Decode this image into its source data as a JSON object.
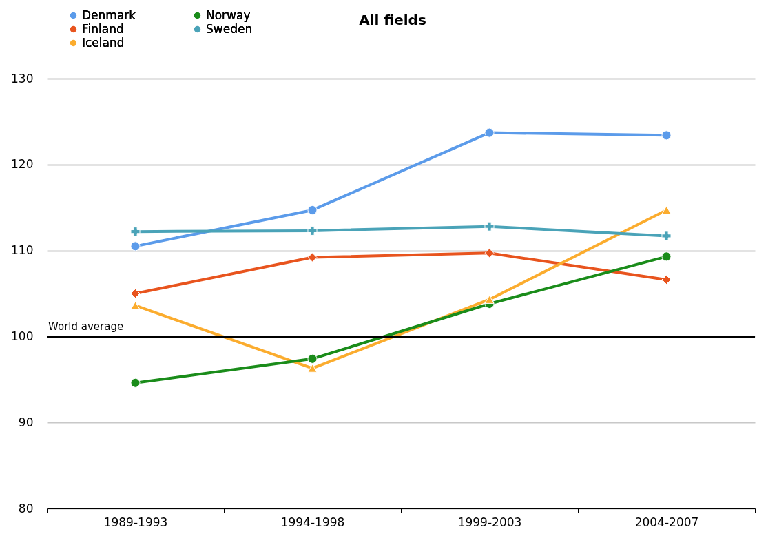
{
  "chart_data": {
    "type": "line",
    "title": "All fields",
    "categories": [
      "1989-1993",
      "1994-1998",
      "1999-2003",
      "2004-2007"
    ],
    "series": [
      {
        "name": "Denmark",
        "color": "#5b9bea",
        "marker": "circle",
        "values": [
          110.5,
          114.7,
          123.7,
          123.4
        ]
      },
      {
        "name": "Finland",
        "color": "#e8541e",
        "marker": "diamond",
        "values": [
          105.0,
          109.2,
          109.7,
          106.6
        ]
      },
      {
        "name": "Iceland",
        "color": "#fbac2e",
        "marker": "triangle",
        "values": [
          103.6,
          96.3,
          104.3,
          114.7
        ]
      },
      {
        "name": "Norway",
        "color": "#1a8c1a",
        "marker": "circle",
        "values": [
          94.6,
          97.4,
          103.8,
          109.3
        ]
      },
      {
        "name": "Sweden",
        "color": "#4aa3b8",
        "marker": "cross",
        "values": [
          112.2,
          112.3,
          112.8,
          111.7
        ]
      }
    ],
    "ylim": [
      80,
      130
    ],
    "yticks": [
      80,
      90,
      100,
      110,
      120,
      130
    ],
    "grid": "y",
    "legend": "top left",
    "line_style": "solid",
    "ref_lines": [
      {
        "axis": "y",
        "value": 100,
        "label": "World average",
        "color": "#000000"
      }
    ]
  }
}
